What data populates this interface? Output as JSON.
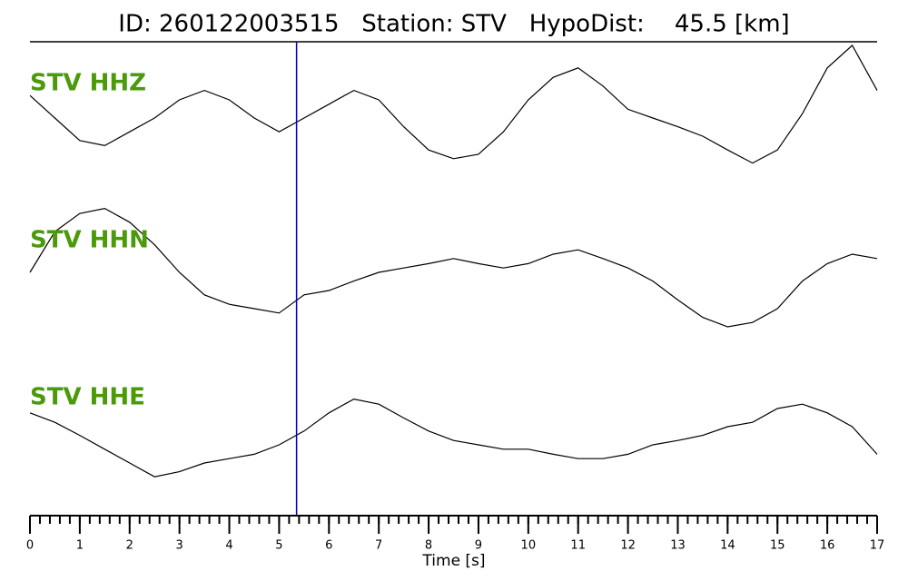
{
  "chart_data": {
    "type": "seismogram",
    "title": "ID: 260122003515   Station: STV   HypoDist:    45.5 [km]",
    "xlabel": "Time [s]",
    "xlim": [
      0,
      17
    ],
    "xticks": [
      0,
      1,
      2,
      3,
      4,
      5,
      6,
      7,
      8,
      9,
      10,
      11,
      12,
      13,
      14,
      15,
      16,
      17
    ],
    "x_minor_step": 0.2,
    "pick_time": 5.35,
    "pick_color": "#0000cc",
    "label_color": "#4a9a0a",
    "x": [
      0,
      0.5,
      1,
      1.5,
      2,
      2.5,
      3,
      3.5,
      4,
      4.5,
      5,
      5.5,
      6,
      6.5,
      7,
      7.5,
      8,
      8.5,
      9,
      9.5,
      10,
      10.5,
      11,
      11.5,
      12,
      12.5,
      13,
      13.5,
      14,
      14.5,
      15,
      15.5,
      16,
      16.5,
      17
    ],
    "series": [
      {
        "name": "STV HHZ",
        "color": "#000000",
        "values": [
          0.31,
          0,
          -0.31,
          -0.38,
          -0.19,
          0,
          0.25,
          0.38,
          0.25,
          0,
          -0.19,
          0,
          0.19,
          0.38,
          0.25,
          -0.12,
          -0.44,
          -0.56,
          -0.5,
          -0.19,
          0.25,
          0.56,
          0.69,
          0.44,
          0.12,
          0,
          -0.12,
          -0.25,
          -0.44,
          -0.62,
          -0.44,
          0.06,
          0.69,
          1.0,
          0.38
        ]
      },
      {
        "name": "STV HHN",
        "color": "#000000",
        "values": [
          0,
          0.56,
          0.81,
          0.88,
          0.69,
          0.38,
          0,
          -0.31,
          -0.44,
          -0.5,
          -0.56,
          -0.31,
          -0.25,
          -0.12,
          0,
          0.06,
          0.12,
          0.19,
          0.12,
          0.06,
          0.12,
          0.25,
          0.31,
          0.19,
          0.06,
          -0.12,
          -0.38,
          -0.62,
          -0.75,
          -0.69,
          -0.5,
          -0.12,
          0.12,
          0.25,
          0.19
        ]
      },
      {
        "name": "STV HHE",
        "color": "#000000",
        "values": [
          0.19,
          0.06,
          -0.12,
          -0.31,
          -0.5,
          -0.69,
          -0.62,
          -0.5,
          -0.44,
          -0.38,
          -0.25,
          -0.06,
          0.19,
          0.38,
          0.31,
          0.12,
          -0.06,
          -0.19,
          -0.25,
          -0.31,
          -0.31,
          -0.38,
          -0.44,
          -0.44,
          -0.38,
          -0.25,
          -0.19,
          -0.12,
          0,
          0.06,
          0.25,
          0.31,
          0.19,
          0,
          -0.38
        ]
      }
    ]
  }
}
